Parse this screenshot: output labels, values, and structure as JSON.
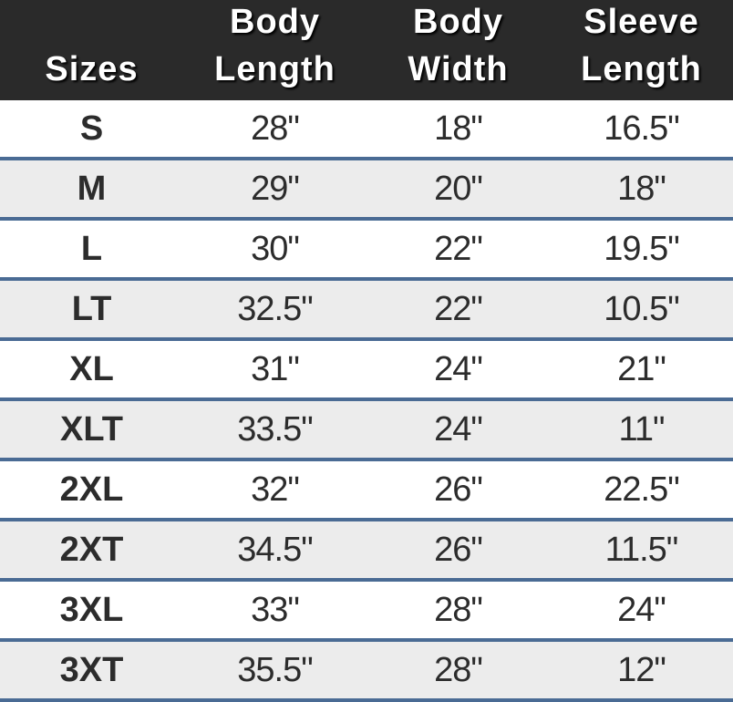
{
  "table": {
    "headers": [
      "Sizes",
      "Body Length",
      "Body Width",
      "Sleeve Length"
    ],
    "rows": [
      [
        "S",
        "28\"",
        "18\"",
        "16.5\""
      ],
      [
        "M",
        "29\"",
        "20\"",
        "18\""
      ],
      [
        "L",
        "30\"",
        "22\"",
        "19.5\""
      ],
      [
        "LT",
        "32.5\"",
        "22\"",
        "10.5\""
      ],
      [
        "XL",
        "31\"",
        "24\"",
        "21\""
      ],
      [
        "XLT",
        "33.5\"",
        "24\"",
        "11\""
      ],
      [
        "2XL",
        "32\"",
        "26\"",
        "22.5\""
      ],
      [
        "2XT",
        "34.5\"",
        "26\"",
        "11.5\""
      ],
      [
        "3XL",
        "33\"",
        "28\"",
        "24\""
      ],
      [
        "3XT",
        "35.5\"",
        "28\"",
        "12\""
      ]
    ]
  }
}
